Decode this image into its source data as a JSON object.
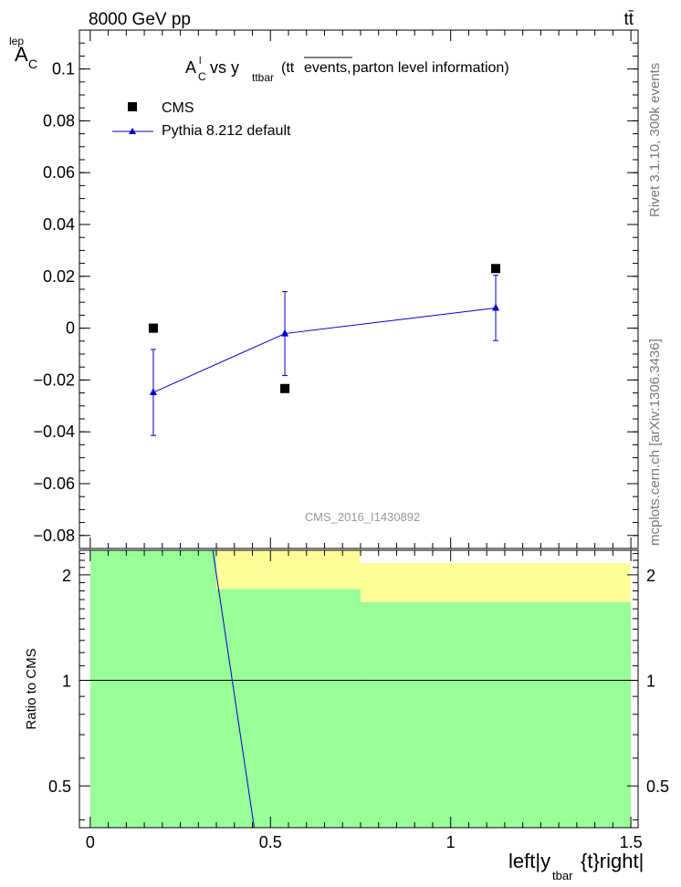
{
  "header": {
    "energy_label": "8000 GeV pp",
    "process_label": "tt̄"
  },
  "side_labels": {
    "rivet": "Rivet 3.1.10,  300k events",
    "mcplots": "mcplots.cern.ch [arXiv:1306.3436]"
  },
  "watermark": "CMS_2016_I1430892",
  "colors": {
    "mc": "#0000cc",
    "data": "#000000",
    "band_outer": "#ffff99",
    "band_inner": "#99ff99"
  },
  "chart_data": [
    {
      "type": "scatter",
      "panel": "main",
      "title": {
        "pre": "A",
        "sup": "l",
        "sub": "C",
        "mid": " vs y",
        "sub2": "ttbar",
        "tt": " (tt",
        "over": "events,",
        "rest": " parton level information)"
      },
      "ylabel": {
        "main": "A",
        "sub": "C",
        "sup": "lep"
      },
      "xlim": [
        -0.03,
        1.52
      ],
      "ylim": [
        -0.085,
        0.115
      ],
      "yticks": [
        0.1,
        0.08,
        0.06,
        0.04,
        0.02,
        0,
        -0.02,
        -0.04,
        -0.06,
        -0.08
      ],
      "ytick_labels": [
        "0.1",
        "0.08",
        "0.06",
        "0.04",
        "0.02",
        "0",
        "−0.02",
        "−0.04",
        "−0.06",
        "−0.08"
      ],
      "legend": [
        "CMS",
        "Pythia 8.212 default"
      ],
      "series": [
        {
          "name": "CMS",
          "marker": "square",
          "x": [
            0.175,
            0.54,
            1.125
          ],
          "y": [
            0.0,
            -0.0233,
            0.023
          ]
        },
        {
          "name": "Pythia 8.212 default",
          "marker": "triangle",
          "x": [
            0.175,
            0.54,
            1.125
          ],
          "y": [
            -0.0248,
            -0.0021,
            0.0078
          ],
          "yerr": [
            0.0166,
            0.0162,
            0.0126
          ]
        }
      ]
    },
    {
      "type": "line",
      "panel": "ratio",
      "ylabel": "Ratio to CMS",
      "xlabel": {
        "pre": "left|y",
        "sub": "tbar",
        "post": "{t}right|"
      },
      "xlim": [
        -0.03,
        1.52
      ],
      "ylim_log": [
        0.38,
        2.35
      ],
      "yticks": [
        0.5,
        1,
        2
      ],
      "ytick_labels": [
        "0.5",
        "1",
        "2"
      ],
      "xticks": [
        0,
        0.5,
        1,
        1.5
      ],
      "xtick_labels": [
        "0",
        "0.5",
        "1",
        "1.5"
      ],
      "reference_line": 1,
      "bands": [
        {
          "x": [
            0.0,
            0.35
          ],
          "outer": [
            0.38,
            2.35
          ],
          "inner": [
            0.38,
            2.35
          ]
        },
        {
          "x": [
            0.35,
            0.75
          ],
          "outer": [
            0.38,
            2.35
          ],
          "inner": [
            0.38,
            1.82
          ]
        },
        {
          "x": [
            0.75,
            1.5
          ],
          "outer": [
            0.38,
            2.16
          ],
          "inner": [
            0.38,
            1.67
          ]
        }
      ],
      "mc_ratio_segment": {
        "x": [
          0.34,
          0.455
        ],
        "y": [
          2.35,
          0.38
        ]
      }
    }
  ]
}
